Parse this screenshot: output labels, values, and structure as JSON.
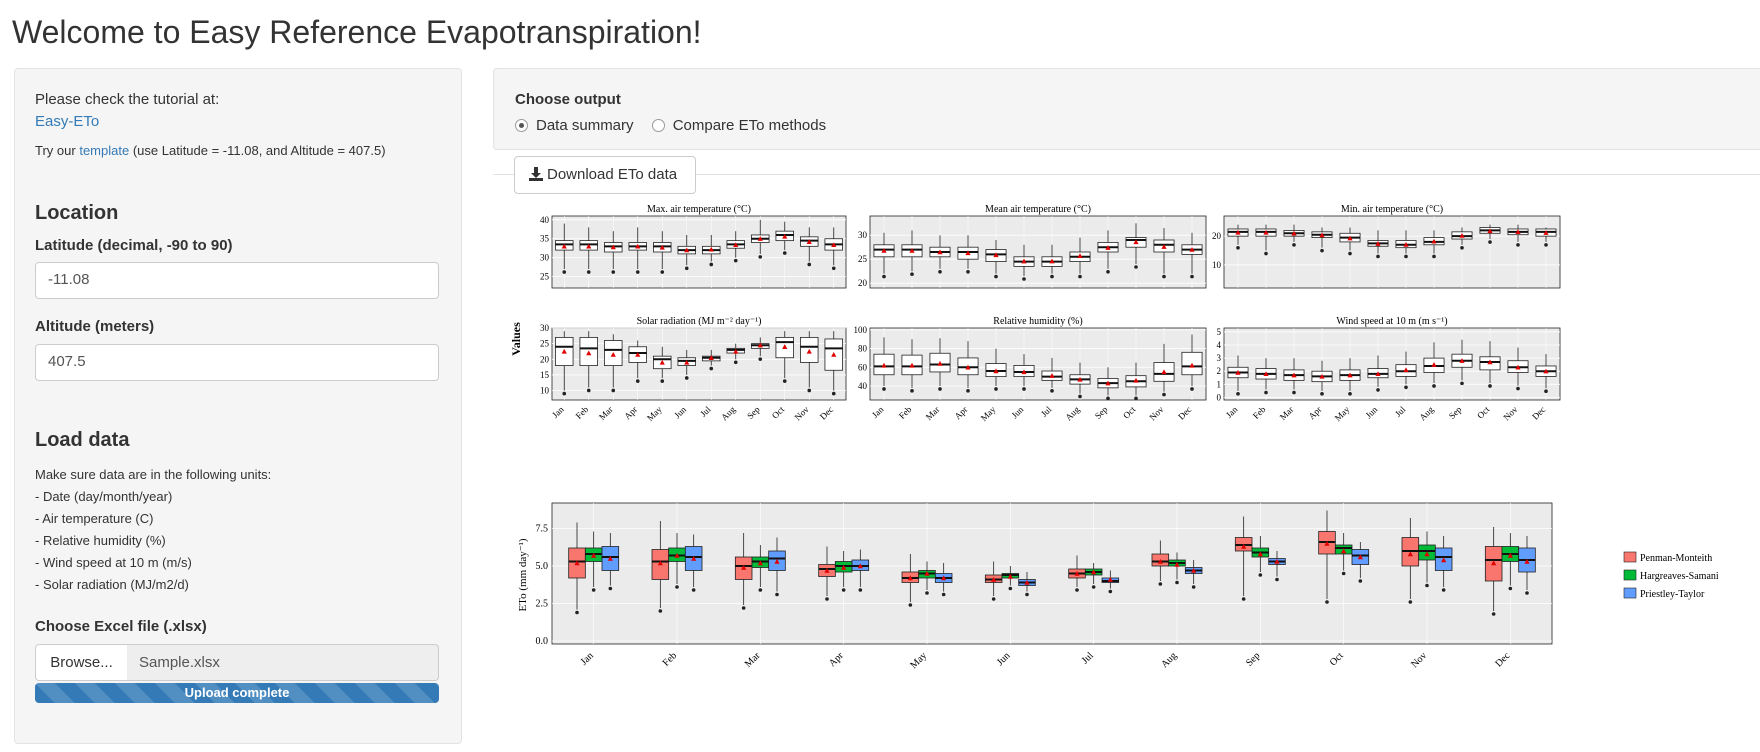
{
  "page_title": "Welcome to Easy Reference Evapotranspiration!",
  "sidebar": {
    "tutorial_text": "Please check the tutorial at:",
    "tutorial_link": "Easy-ETo",
    "template_pre": "Try our",
    "template_link": "template",
    "template_post": "(use Latitude = -11.08, and Altitude = 407.5)",
    "location_heading": "Location",
    "latitude_label": "Latitude (decimal, -90 to 90)",
    "latitude_value": "-11.08",
    "altitude_label": "Altitude (meters)",
    "altitude_value": "407.5",
    "load_heading": "Load data",
    "units_intro": "Make sure data are in the following units:",
    "units": [
      "- Date (day/month/year)",
      "- Air temperature (C)",
      "- Relative humidity (%)",
      "- Wind speed at 10 m (m/s)",
      "- Solar radiation (MJ/m2/d)"
    ],
    "file_label": "Choose Excel file (.xlsx)",
    "browse_label": "Browse...",
    "file_name": "Sample.xlsx",
    "upload_status": "Upload complete",
    "upload_progress": 1.0
  },
  "output": {
    "heading": "Choose output",
    "options": [
      {
        "label": "Data summary",
        "selected": true
      },
      {
        "label": "Compare ETo methods",
        "selected": false
      }
    ],
    "download_label": "Download ETo data",
    "download_icon": "download-icon"
  },
  "colors": {
    "panel_bg": "#ebebeb",
    "median_marker": "#e00000",
    "link": "#337ab7"
  },
  "chart_data": [
    {
      "type": "boxplot",
      "ylabel": "Values",
      "categories": [
        "Jan",
        "Feb",
        "Mar",
        "Apr",
        "May",
        "Jun",
        "Jul",
        "Aug",
        "Sep",
        "Oct",
        "Nov",
        "Dec"
      ],
      "panels": [
        {
          "title": "Max. air temperature (°C)",
          "ylim": [
            22,
            41
          ],
          "yticks": [
            25,
            30,
            35,
            40
          ],
          "q1": [
            32,
            32,
            31.5,
            32,
            31.5,
            31,
            31,
            32.5,
            34,
            34.5,
            33,
            32
          ],
          "median": [
            33.5,
            33.5,
            33,
            33,
            33,
            32,
            32,
            33.5,
            35,
            36,
            34.5,
            33.5
          ],
          "q3": [
            34.5,
            34.5,
            34,
            34,
            34,
            33,
            33,
            34.5,
            36,
            37,
            35.5,
            35
          ],
          "wlo": [
            27,
            27,
            27,
            27,
            27,
            28,
            29,
            30,
            31,
            32,
            29,
            28
          ],
          "whi": [
            39,
            38,
            37,
            38,
            37,
            36,
            36,
            37,
            40,
            39.5,
            38,
            38
          ],
          "mean": [
            33,
            33,
            32.8,
            33,
            32.7,
            32,
            32.2,
            33.4,
            35,
            35.6,
            34.2,
            33.4
          ]
        },
        {
          "title": "Mean air temperature (°C)",
          "ylim": [
            19,
            34
          ],
          "yticks": [
            20,
            25,
            30
          ],
          "q1": [
            25.5,
            25.5,
            25.5,
            25,
            24.5,
            23.5,
            23.5,
            24.5,
            26.5,
            27.5,
            26.5,
            26
          ],
          "median": [
            27,
            27,
            26.5,
            26.5,
            26,
            24.5,
            24.5,
            25.5,
            27.5,
            29,
            28,
            27
          ],
          "q3": [
            28,
            28,
            27.5,
            27.5,
            27,
            25.5,
            25.5,
            26.5,
            28.5,
            29.5,
            29,
            28
          ],
          "wlo": [
            22,
            22.5,
            23,
            23,
            22,
            21.5,
            22,
            22,
            23,
            24,
            22,
            22
          ],
          "whi": [
            30.5,
            31,
            30,
            30,
            29,
            28,
            28,
            29.5,
            31,
            32.5,
            31.5,
            30.5
          ],
          "mean": [
            26.8,
            26.8,
            26.5,
            26.3,
            25.9,
            24.6,
            24.6,
            25.7,
            27.4,
            28.6,
            27.6,
            27
          ]
        },
        {
          "title": "Min. air temperature (°C)",
          "ylim": [
            2,
            27
          ],
          "yticks": [
            10,
            20
          ],
          "q1": [
            20,
            20,
            20,
            19.5,
            18,
            16.5,
            16,
            17,
            19,
            21,
            20.5,
            20
          ],
          "median": [
            21.5,
            21.5,
            21,
            20.5,
            19.5,
            17.5,
            17,
            18,
            20,
            22,
            21.5,
            21.5
          ],
          "q3": [
            22.5,
            22.5,
            22,
            21.5,
            21,
            18.5,
            18.5,
            19.5,
            21.5,
            23,
            22.5,
            22.5
          ],
          "wlo": [
            17,
            15,
            18,
            16,
            15,
            14,
            14,
            14,
            17,
            19,
            18,
            18
          ],
          "whi": [
            24,
            24,
            24,
            23,
            23,
            22,
            22,
            22,
            23,
            24,
            24,
            23
          ],
          "mean": [
            21.3,
            21.3,
            21,
            20.4,
            19.3,
            17.4,
            17.1,
            18.2,
            20.2,
            21.8,
            21.5,
            21.2
          ]
        },
        {
          "title": "Solar radiation (MJ m⁻² day⁻¹)",
          "ylim": [
            7,
            30
          ],
          "yticks": [
            10,
            15,
            20,
            25,
            30
          ],
          "q1": [
            18,
            18,
            18,
            19,
            17,
            18,
            19.5,
            22,
            23.5,
            20.5,
            19,
            16.5
          ],
          "median": [
            24,
            23.5,
            23,
            22,
            20,
            19.5,
            20.5,
            23,
            24.5,
            25.5,
            24,
            23.5
          ],
          "q3": [
            27,
            27,
            26,
            24,
            21,
            20.5,
            21,
            23.5,
            25,
            27,
            27,
            26.5
          ],
          "wlo": [
            10,
            11,
            11,
            14,
            14,
            15,
            18,
            20,
            21,
            14,
            11,
            10
          ],
          "whi": [
            29,
            29,
            28,
            26,
            24,
            23,
            23,
            25,
            27,
            29,
            29,
            29
          ],
          "mean": [
            22.5,
            22,
            21.5,
            21.5,
            19,
            19,
            20.5,
            22.5,
            24.5,
            24,
            22.5,
            21.5
          ]
        },
        {
          "title": "Relative humidity (%)",
          "ylim": [
            25,
            102
          ],
          "yticks": [
            40,
            60,
            80,
            100
          ],
          "q1": [
            52,
            52,
            55,
            52,
            50,
            50,
            46,
            42,
            38,
            39,
            45,
            52
          ],
          "median": [
            61,
            61,
            63,
            60,
            56,
            55,
            50,
            47,
            43,
            45,
            53,
            61
          ],
          "q3": [
            74,
            73,
            75,
            70,
            64,
            62,
            56,
            52,
            48,
            51,
            65,
            76
          ],
          "wlo": [
            40,
            38,
            40,
            38,
            40,
            40,
            38,
            32,
            30,
            30,
            34,
            40
          ],
          "whi": [
            92,
            90,
            91,
            88,
            80,
            74,
            70,
            65,
            60,
            65,
            85,
            95
          ],
          "mean": [
            62,
            62,
            64,
            60,
            56,
            55,
            51,
            47,
            43,
            46,
            55,
            62
          ]
        },
        {
          "title": "Wind speed at 10 m (m s⁻¹)",
          "ylim": [
            -0.2,
            5.3
          ],
          "yticks": [
            0,
            1,
            2,
            3,
            4,
            5
          ],
          "q1": [
            1.5,
            1.4,
            1.3,
            1.2,
            1.3,
            1.5,
            1.6,
            1.9,
            2.3,
            2.1,
            1.9,
            1.6
          ],
          "median": [
            1.9,
            1.8,
            1.7,
            1.6,
            1.7,
            1.8,
            2,
            2.4,
            2.8,
            2.7,
            2.3,
            2
          ],
          "q3": [
            2.3,
            2.2,
            2.1,
            2,
            2.1,
            2.2,
            2.5,
            3,
            3.3,
            3.1,
            2.8,
            2.4
          ],
          "wlo": [
            0.5,
            0.6,
            0.6,
            0.5,
            0.5,
            0.8,
            1,
            1.1,
            1.3,
            1.1,
            0.9,
            0.7
          ],
          "whi": [
            3.2,
            3,
            3,
            2.8,
            3,
            3.2,
            3.5,
            4.2,
            4.4,
            4.3,
            3.8,
            3.3
          ],
          "mean": [
            1.9,
            1.8,
            1.7,
            1.6,
            1.7,
            1.8,
            2.1,
            2.5,
            2.8,
            2.7,
            2.3,
            2
          ]
        }
      ]
    },
    {
      "type": "boxplot",
      "ylabel": "ETo (mm day⁻¹)",
      "ylim": [
        -0.2,
        9.2
      ],
      "yticks": [
        "0.0",
        "2.5",
        "5.0",
        "7.5"
      ],
      "ytick_values": [
        0,
        2.5,
        5,
        7.5
      ],
      "categories": [
        "Jan",
        "Feb",
        "Mar",
        "Apr",
        "May",
        "Jun",
        "Jul",
        "Aug",
        "Sep",
        "Oct",
        "Nov",
        "Dec"
      ],
      "legend_position": "right",
      "series": [
        {
          "name": "Penman-Monteith",
          "color": "#f8766d",
          "q1": [
            4.2,
            4.1,
            4.1,
            4.3,
            3.9,
            3.9,
            4.2,
            5,
            6,
            5.8,
            5,
            4
          ],
          "median": [
            5.3,
            5.3,
            5,
            4.8,
            4.2,
            4.1,
            4.5,
            5.3,
            6.4,
            6.6,
            6,
            5.4
          ],
          "q3": [
            6.2,
            6.1,
            5.6,
            5.1,
            4.6,
            4.4,
            4.8,
            5.8,
            6.9,
            7.3,
            6.9,
            6.3
          ],
          "wlo": [
            2.1,
            2.2,
            2.4,
            3,
            2.6,
            3,
            3.6,
            4,
            3,
            2.8,
            2.8,
            2
          ],
          "whi": [
            7.9,
            8,
            7.2,
            6.3,
            5.8,
            5.3,
            5.7,
            6.7,
            8.3,
            8.7,
            8.2,
            7.6
          ],
          "mean": [
            5.2,
            5.2,
            4.9,
            4.7,
            4.2,
            4.1,
            4.5,
            5.3,
            6.3,
            6.5,
            5.8,
            5.2
          ]
        },
        {
          "title": "",
          "name": "Hargreaves-Samani",
          "color": "#00ba38",
          "q1": [
            5.3,
            5.3,
            4.9,
            4.6,
            4.2,
            4.2,
            4.4,
            5,
            5.6,
            5.8,
            5.4,
            5.3
          ],
          "median": [
            5.8,
            5.7,
            5.3,
            5,
            4.5,
            4.4,
            4.6,
            5.2,
            5.9,
            6.2,
            6,
            5.8
          ],
          "q3": [
            6.2,
            6.2,
            5.6,
            5.3,
            4.7,
            4.5,
            4.8,
            5.4,
            6.2,
            6.4,
            6.4,
            6.3
          ],
          "wlo": [
            3.6,
            3.8,
            3.6,
            3.6,
            3.4,
            3.7,
            3.8,
            4.1,
            4.6,
            4.7,
            3.9,
            3.7
          ],
          "whi": [
            7.3,
            7.2,
            6.4,
            6,
            5.3,
            5,
            5.2,
            5.9,
            7,
            7.2,
            7.3,
            7.2
          ],
          "mean": [
            5.7,
            5.7,
            5.2,
            4.9,
            4.5,
            4.3,
            4.6,
            5.1,
            5.8,
            6,
            5.8,
            5.7
          ]
        },
        {
          "name": "Priestley-Taylor",
          "color": "#619cff",
          "q1": [
            4.7,
            4.7,
            4.7,
            4.7,
            3.9,
            3.7,
            3.9,
            4.5,
            5.1,
            5.1,
            4.7,
            4.6
          ],
          "median": [
            5.6,
            5.6,
            5.5,
            5,
            4.2,
            3.9,
            4,
            4.7,
            5.3,
            5.7,
            5.6,
            5.4
          ],
          "q3": [
            6.3,
            6.3,
            6,
            5.4,
            4.5,
            4.1,
            4.2,
            4.9,
            5.5,
            6.1,
            6.2,
            6.2
          ],
          "wlo": [
            3.7,
            3.6,
            3.3,
            3.6,
            3.3,
            3.3,
            3.5,
            3.8,
            4.3,
            4.2,
            3.6,
            3.4
          ],
          "whi": [
            7.2,
            7.1,
            6.9,
            6.1,
            5.2,
            4.6,
            4.7,
            5.4,
            6,
            6.6,
            7,
            7
          ],
          "mean": [
            5.5,
            5.5,
            5.3,
            5,
            4.2,
            3.9,
            4.1,
            4.7,
            5.3,
            5.6,
            5.4,
            5.3
          ]
        }
      ]
    }
  ]
}
